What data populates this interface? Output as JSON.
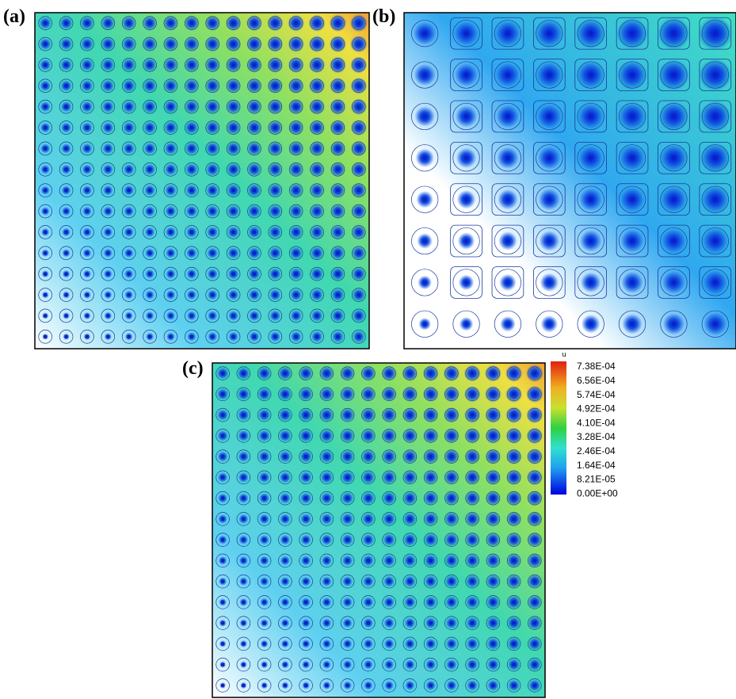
{
  "figure": {
    "panels": [
      {
        "label": "(a)"
      },
      {
        "label": "(b)"
      },
      {
        "label": "(c)"
      }
    ],
    "axis_label": "u",
    "colorbar": {
      "labels": [
        "7.38E-04",
        "6.56E-04",
        "5.74E-04",
        "4.92E-04",
        "4.10E-04",
        "3.28E-04",
        "2.46E-04",
        "1.64E-04",
        "8.21E-05",
        "0.00E+00"
      ]
    }
  }
}
